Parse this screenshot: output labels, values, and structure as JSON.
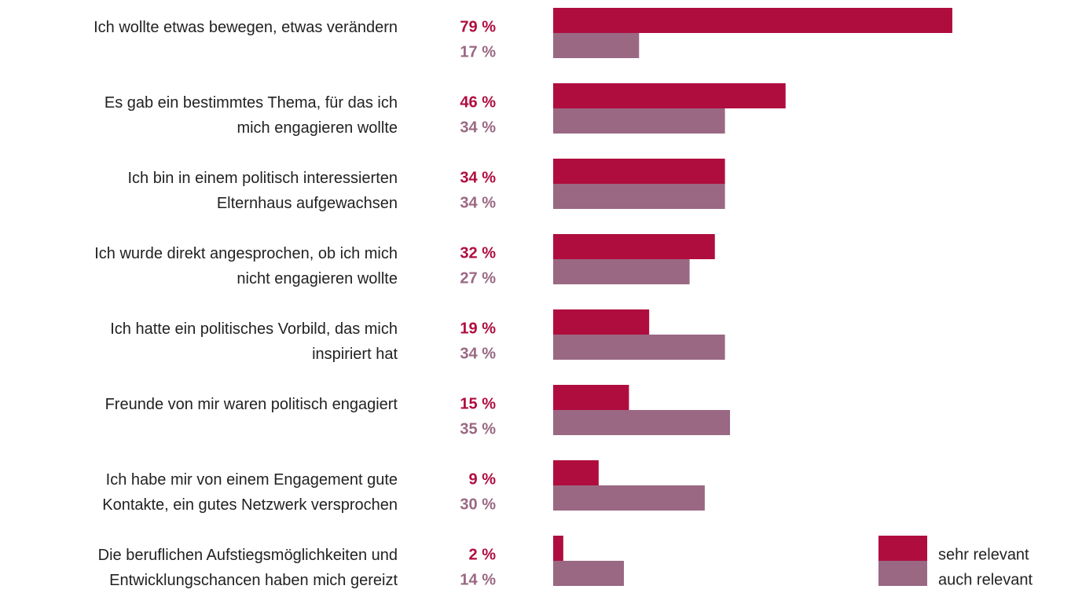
{
  "chart_data": {
    "type": "bar",
    "orientation": "horizontal",
    "categories": [
      "Ich wollte etwas bewegen, etwas verändern",
      "Es gab ein bestimmtes Thema, für das ich\nmich engagieren wollte",
      "Ich bin in einem politisch interessierten\nElternhaus aufgewachsen",
      "Ich wurde direkt angesprochen, ob ich mich\nnicht engagieren wollte",
      "Ich hatte ein politisches Vorbild, das mich\ninspiriert hat",
      "Freunde von mir waren politisch engagiert",
      "Ich habe mir von einem Engagement gute\nKontakte, ein gutes Netzwerk versprochen",
      "Die beruflichen Aufstiegsmöglichkeiten und\nEntwicklungschancen haben mich gereizt"
    ],
    "series": [
      {
        "name": "sehr relevant",
        "color": "#b00d3f",
        "values": [
          79,
          46,
          34,
          32,
          19,
          15,
          9,
          2
        ],
        "value_labels": [
          "79 %",
          "46 %",
          "34 %",
          "32 %",
          "19 %",
          "15 %",
          "9 %",
          "2 %"
        ]
      },
      {
        "name": "auch relevant",
        "color": "#9a6883",
        "values": [
          17,
          34,
          34,
          27,
          34,
          35,
          30,
          14
        ],
        "value_labels": [
          "17 %",
          "34 %",
          "34 %",
          "27 %",
          "34 %",
          "35 %",
          "30 %",
          "14 %"
        ]
      }
    ],
    "legend": "bottom-right"
  }
}
